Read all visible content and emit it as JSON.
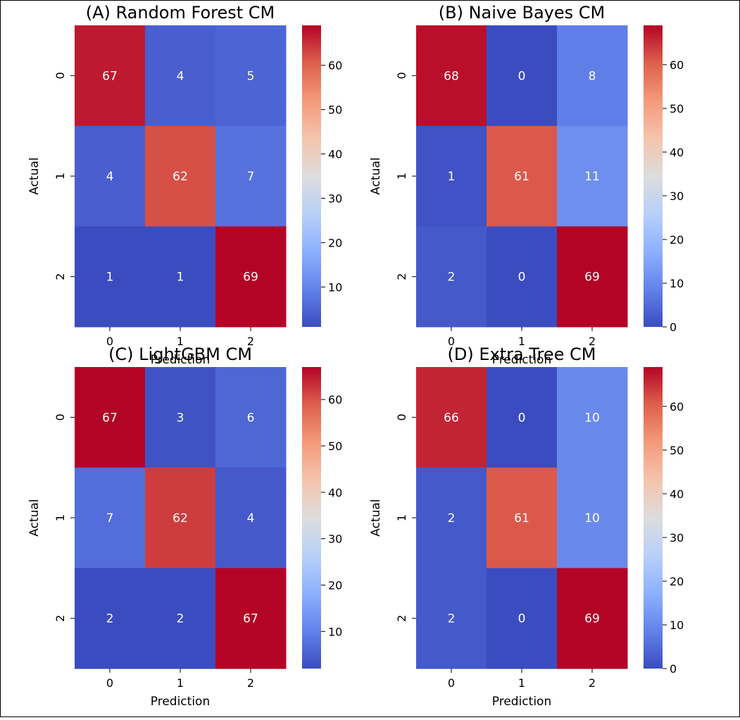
{
  "figure": {
    "border_color": "#000000",
    "background": "#ffffff"
  },
  "colormap": "coolwarm",
  "chart_data": [
    {
      "type": "heatmap",
      "title": "(A) Random Forest CM",
      "xlabel": "Prediction",
      "ylabel": "Actual",
      "x_categories": [
        "0",
        "1",
        "2"
      ],
      "y_categories": [
        "0",
        "1",
        "2"
      ],
      "matrix": [
        [
          67,
          4,
          5
        ],
        [
          4,
          62,
          7
        ],
        [
          1,
          1,
          69
        ]
      ],
      "color_range": [
        1,
        69
      ],
      "colorbar_ticks": [
        10,
        20,
        30,
        40,
        50,
        60
      ]
    },
    {
      "type": "heatmap",
      "title": "(B) Naive Bayes CM",
      "xlabel": "Prediction",
      "ylabel": "Actual",
      "x_categories": [
        "0",
        "1",
        "2"
      ],
      "y_categories": [
        "0",
        "1",
        "2"
      ],
      "matrix": [
        [
          68,
          0,
          8
        ],
        [
          1,
          61,
          11
        ],
        [
          2,
          0,
          69
        ]
      ],
      "color_range": [
        0,
        69
      ],
      "colorbar_ticks": [
        0,
        10,
        20,
        30,
        40,
        50,
        60
      ]
    },
    {
      "type": "heatmap",
      "title": "(C) LightGBM CM",
      "xlabel": "Prediction",
      "ylabel": "Actual",
      "x_categories": [
        "0",
        "1",
        "2"
      ],
      "y_categories": [
        "0",
        "1",
        "2"
      ],
      "matrix": [
        [
          67,
          3,
          6
        ],
        [
          7,
          62,
          4
        ],
        [
          2,
          2,
          67
        ]
      ],
      "color_range": [
        2,
        67
      ],
      "colorbar_ticks": [
        10,
        20,
        30,
        40,
        50,
        60
      ]
    },
    {
      "type": "heatmap",
      "title": "(D) Extra Tree CM",
      "xlabel": "Prediction",
      "ylabel": "Actual",
      "x_categories": [
        "0",
        "1",
        "2"
      ],
      "y_categories": [
        "0",
        "1",
        "2"
      ],
      "matrix": [
        [
          66,
          0,
          10
        ],
        [
          2,
          61,
          10
        ],
        [
          2,
          0,
          69
        ]
      ],
      "color_range": [
        0,
        69
      ],
      "colorbar_ticks": [
        0,
        10,
        20,
        30,
        40,
        50,
        60
      ]
    }
  ]
}
